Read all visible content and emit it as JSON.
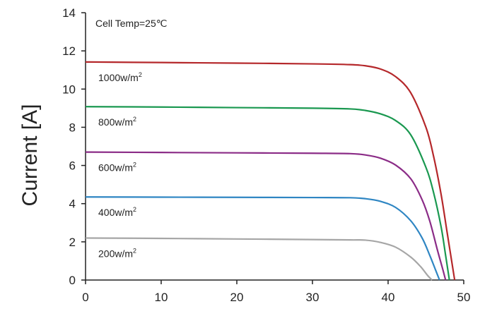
{
  "chart_data": {
    "type": "line",
    "title": "",
    "xlabel": "",
    "ylabel": "Current [A]",
    "annotation": "Cell Temp=25℃",
    "xlim": [
      0,
      50
    ],
    "ylim": [
      0,
      14
    ],
    "xticks": [
      0,
      10,
      20,
      30,
      40,
      50
    ],
    "yticks": [
      0,
      2,
      4,
      6,
      8,
      10,
      12,
      14
    ],
    "grid": false,
    "series": [
      {
        "name": "1000w/m²",
        "label_base": "1000w/m",
        "label_sup": "2",
        "color": "#b5282b",
        "x": [
          0,
          10,
          20,
          30,
          35,
          37,
          39,
          41,
          43,
          45,
          46,
          47,
          47.8,
          48.4,
          48.8
        ],
        "y": [
          11.42,
          11.39,
          11.36,
          11.32,
          11.28,
          11.22,
          11.05,
          10.65,
          9.8,
          8.0,
          6.5,
          4.5,
          2.5,
          1.0,
          0
        ]
      },
      {
        "name": "800w/m²",
        "label_base": "800w/m",
        "label_sup": "2",
        "color": "#1a9850",
        "x": [
          0,
          10,
          20,
          30,
          35,
          37,
          39,
          41,
          43,
          45,
          46,
          47,
          47.6,
          48.1
        ],
        "y": [
          9.08,
          9.06,
          9.03,
          9.0,
          8.96,
          8.88,
          8.7,
          8.35,
          7.6,
          5.9,
          4.6,
          2.8,
          1.3,
          0
        ]
      },
      {
        "name": "600w/m²",
        "label_base": "600w/m",
        "label_sup": "2",
        "color": "#8b2c87",
        "x": [
          0,
          10,
          20,
          30,
          35,
          37,
          39,
          41,
          43,
          44.5,
          45.5,
          46.5,
          47.2,
          47.6
        ],
        "y": [
          6.7,
          6.68,
          6.66,
          6.64,
          6.62,
          6.55,
          6.38,
          6.02,
          5.3,
          4.2,
          3.1,
          1.6,
          0.6,
          0
        ]
      },
      {
        "name": "400w/m²",
        "label_base": "400w/m",
        "label_sup": "2",
        "color": "#2f86c3",
        "x": [
          0,
          10,
          20,
          30,
          35,
          37,
          39,
          41,
          43,
          44.5,
          45.5,
          46.3,
          46.8
        ],
        "y": [
          4.35,
          4.34,
          4.33,
          4.32,
          4.31,
          4.26,
          4.12,
          3.8,
          3.1,
          2.2,
          1.3,
          0.5,
          0
        ]
      },
      {
        "name": "200w/m²",
        "label_base": "200w/m",
        "label_sup": "2",
        "color": "#a6a6a6",
        "x": [
          0,
          10,
          20,
          30,
          35,
          37,
          39,
          41,
          43,
          44.3,
          45.2,
          45.8
        ],
        "y": [
          2.2,
          2.18,
          2.15,
          2.12,
          2.1,
          2.09,
          1.97,
          1.72,
          1.2,
          0.7,
          0.25,
          0
        ]
      }
    ]
  }
}
